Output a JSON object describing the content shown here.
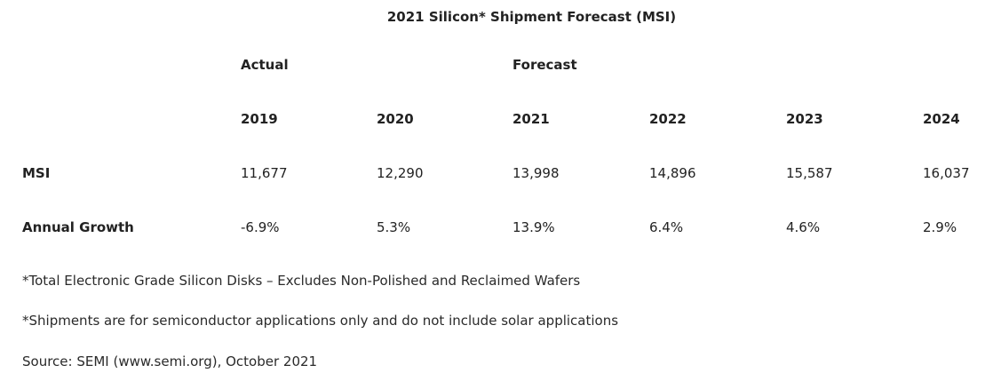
{
  "chart_data": {
    "type": "table",
    "title": "2021 Silicon* Shipment Forecast (MSI)",
    "column_groups": [
      {
        "label": "Actual",
        "years": [
          "2019",
          "2020"
        ]
      },
      {
        "label": "Forecast",
        "years": [
          "2021",
          "2022",
          "2023",
          "2024"
        ]
      }
    ],
    "columns": [
      "2019",
      "2020",
      "2021",
      "2022",
      "2023",
      "2024"
    ],
    "rows": [
      {
        "label": "MSI",
        "values": [
          "11,677",
          "12,290",
          "13,998",
          "14,896",
          "15,587",
          "16,037"
        ]
      },
      {
        "label": "Annual Growth",
        "values": [
          "-6.9%",
          "5.3%",
          "13.9%",
          "6.4%",
          "4.6%",
          "2.9%"
        ]
      }
    ],
    "notes": [
      "*Total Electronic Grade Silicon Disks – Excludes Non-Polished and Reclaimed Wafers",
      "*Shipments are for semiconductor applications only and do not include solar applications",
      "Source: SEMI (www.semi.org), October 2021"
    ]
  }
}
